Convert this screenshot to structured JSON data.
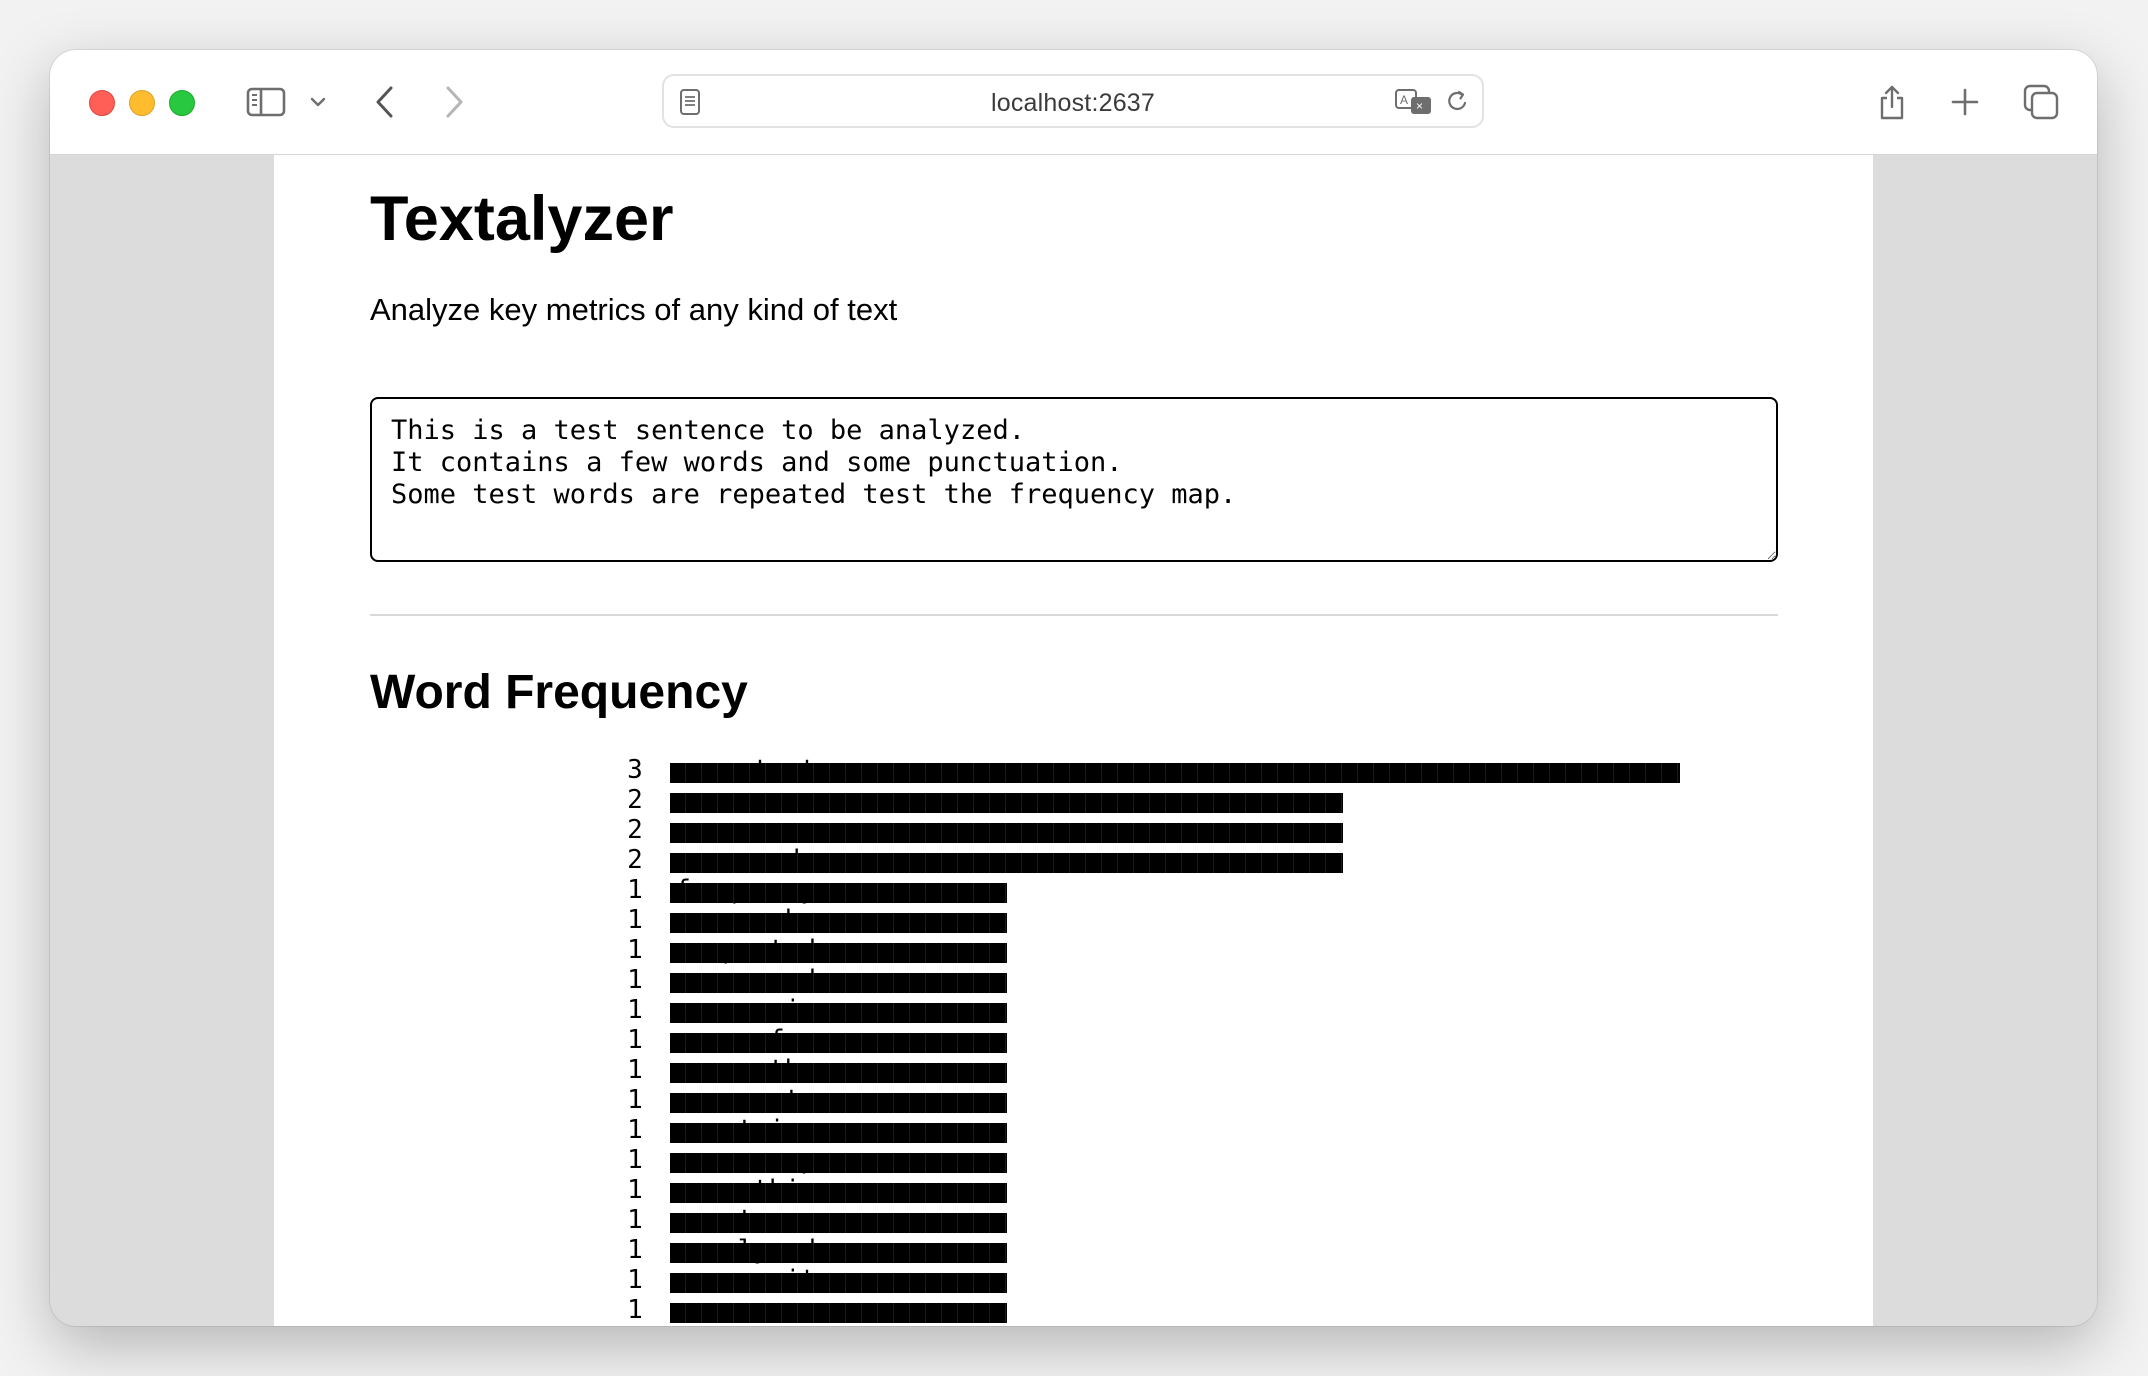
{
  "browser": {
    "address": "localhost:2637"
  },
  "page": {
    "title": "Textalyzer",
    "subtitle": "Analyze key metrics of any kind of text",
    "input_text": "This is a test sentence to be analyzed.\nIt contains a few words and some punctuation.\nSome test words are repeated test the frequency map.",
    "section_title": "Word Frequency"
  },
  "frequencies": [
    {
      "word": "test",
      "count": 3
    },
    {
      "word": "a",
      "count": 2
    },
    {
      "word": "some",
      "count": 2
    },
    {
      "word": "words",
      "count": 2
    },
    {
      "word": "frequency",
      "count": 1
    },
    {
      "word": "be",
      "count": 1
    },
    {
      "word": "repeated",
      "count": 1
    },
    {
      "word": "and",
      "count": 1
    },
    {
      "word": "is",
      "count": 1
    },
    {
      "word": "few",
      "count": 1
    },
    {
      "word": "the",
      "count": 1
    },
    {
      "word": "to",
      "count": 1
    },
    {
      "word": "contains",
      "count": 1
    },
    {
      "word": "map",
      "count": 1
    },
    {
      "word": "this",
      "count": 1
    },
    {
      "word": "sentence",
      "count": 1
    },
    {
      "word": "analyzed",
      "count": 1
    },
    {
      "word": "it",
      "count": 1
    },
    {
      "word": "are",
      "count": 1
    }
  ],
  "icons": {
    "sidebar": "sidebar-icon",
    "back": "chevron-left-icon",
    "forward": "chevron-right-icon",
    "share": "share-icon",
    "new_tab": "plus-icon",
    "tabs": "tab-overview-icon"
  },
  "colors": {
    "close": "#ff5f57",
    "minimize": "#febc2e",
    "zoom": "#28c840",
    "bar": "#000000"
  }
}
